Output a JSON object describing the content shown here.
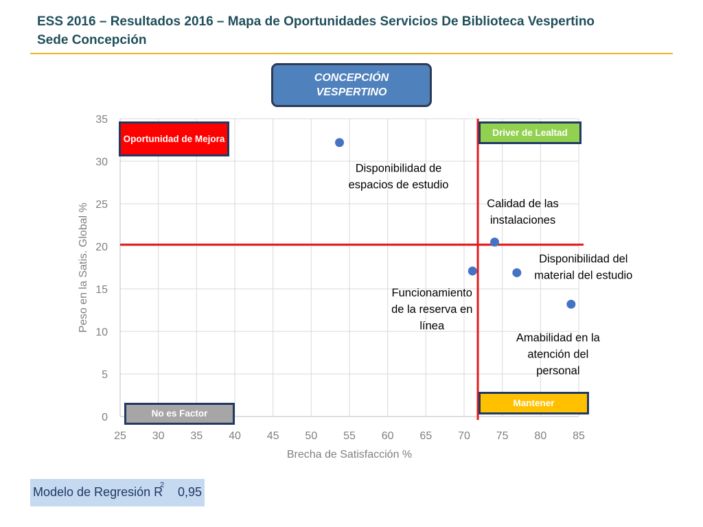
{
  "header": {
    "title_line1": "ESS 2016 – Resultados 2016 – Mapa de Oportunidades Servicios De Biblioteca Vespertino",
    "title_line2": "Sede Concepción"
  },
  "segment": {
    "line1": "CONCEPCIÓN",
    "line2": "VESPERTINO"
  },
  "quadrants": {
    "opportunity": "Oportunidad de Mejora",
    "driver": "Driver de Lealtad",
    "maintain": "Mantener",
    "not_factor": "No es Factor"
  },
  "regression": {
    "label": "Modelo de Regresión R",
    "superscript": "2",
    "value": "0,95"
  },
  "colors": {
    "point": "#4472c4",
    "reference_line": "#e41a1c",
    "grid": "#d9d9d9",
    "axis_text": "#7f7f7f",
    "title": "#1f4e5a",
    "accent_rule": "#e8b923"
  },
  "chart_data": {
    "type": "scatter",
    "xlabel": "Brecha de Satisfacción %",
    "ylabel": "Peso en la Satis. Global %",
    "xlim": [
      25,
      85
    ],
    "ylim": [
      0,
      35
    ],
    "xticks": [
      25,
      30,
      35,
      40,
      45,
      50,
      55,
      60,
      65,
      70,
      75,
      80,
      85
    ],
    "yticks": [
      0,
      5,
      10,
      15,
      20,
      25,
      30,
      35
    ],
    "grid": true,
    "reference_lines": {
      "x": 71.8,
      "y": 20.2
    },
    "points": [
      {
        "label": [
          "Disponibilidad de",
          "espacios de estudio"
        ],
        "x": 53.7,
        "y": 32.2
      },
      {
        "label": [
          "Calidad de las",
          "instalaciones"
        ],
        "x": 74.0,
        "y": 20.5
      },
      {
        "label": [
          "Funcionamiento",
          "de la reserva en",
          "línea"
        ],
        "x": 71.1,
        "y": 17.1
      },
      {
        "label": [
          "Disponibilidad del",
          "material del estudio"
        ],
        "x": 76.9,
        "y": 16.9
      },
      {
        "label": [
          "Amabilidad en la",
          "atención del",
          "personal"
        ],
        "x": 84.0,
        "y": 13.2
      }
    ]
  }
}
